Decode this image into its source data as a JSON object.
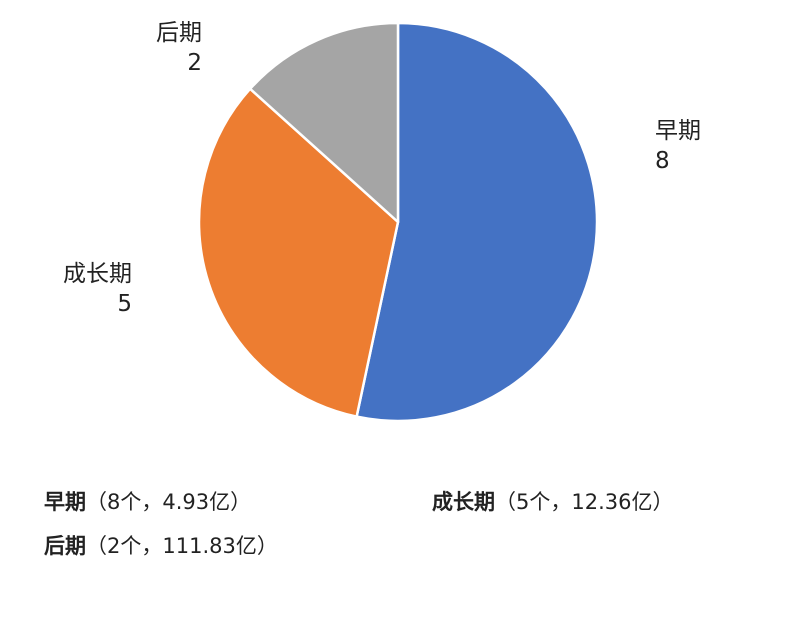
{
  "chart_data": {
    "type": "pie",
    "categories": [
      "早期",
      "成长期",
      "后期"
    ],
    "values": [
      8,
      5,
      2
    ],
    "colors": [
      "#4472C4",
      "#ED7D31",
      "#A5A5A5"
    ],
    "start_angle_deg": 0,
    "direction": "clockwise",
    "data_labels": [
      {
        "name": "早期",
        "value": "8"
      },
      {
        "name": "成长期",
        "value": "5"
      },
      {
        "name": "后期",
        "value": "2"
      }
    ],
    "legend": {
      "placement": "bottom",
      "entries": [
        {
          "name": "早期",
          "detail": "（8个，4.93亿）"
        },
        {
          "name": "成长期",
          "detail": "（5个，12.36亿）"
        },
        {
          "name": "后期",
          "detail": "（2个，111.83亿）"
        }
      ]
    }
  }
}
